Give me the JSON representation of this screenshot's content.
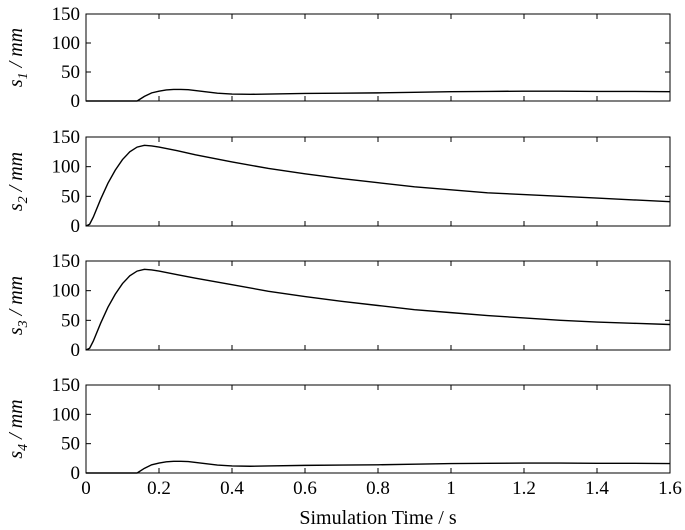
{
  "chart_data": [
    {
      "type": "line",
      "ylabel_main": "s",
      "ylabel_sub": "1",
      "ylabel_unit": " / mm",
      "xlim": [
        0,
        1.6
      ],
      "ylim": [
        0,
        150
      ],
      "series": [
        {
          "x": [
            0,
            0.14,
            0.16,
            0.18,
            0.2,
            0.22,
            0.24,
            0.26,
            0.28,
            0.3,
            0.32,
            0.34,
            0.36,
            0.4,
            0.45,
            0.5,
            0.6,
            0.7,
            0.8,
            0.9,
            1.0,
            1.1,
            1.2,
            1.3,
            1.4,
            1.5,
            1.6
          ],
          "y": [
            0,
            0,
            8,
            14,
            17,
            19,
            20,
            20,
            19.5,
            18,
            16.5,
            15,
            13.5,
            12,
            11.5,
            12,
            13,
            13.5,
            14,
            15,
            16,
            16.5,
            17,
            17,
            16.5,
            16.5,
            16
          ]
        }
      ]
    },
    {
      "type": "line",
      "ylabel_main": "s",
      "ylabel_sub": "2",
      "ylabel_unit": " / mm",
      "xlim": [
        0,
        1.6
      ],
      "ylim": [
        0,
        150
      ],
      "series": [
        {
          "x": [
            0,
            0.01,
            0.02,
            0.04,
            0.06,
            0.08,
            0.1,
            0.12,
            0.14,
            0.16,
            0.18,
            0.2,
            0.25,
            0.3,
            0.4,
            0.5,
            0.6,
            0.7,
            0.8,
            0.9,
            1.0,
            1.1,
            1.2,
            1.3,
            1.4,
            1.5,
            1.6
          ],
          "y": [
            0,
            3,
            15,
            45,
            72,
            94,
            112,
            125,
            133,
            136,
            135,
            133,
            127,
            120,
            108,
            97,
            88,
            80,
            73,
            66,
            61,
            56,
            53,
            50,
            47,
            44,
            41
          ]
        }
      ]
    },
    {
      "type": "line",
      "ylabel_main": "s",
      "ylabel_sub": "3",
      "ylabel_unit": " / mm",
      "xlim": [
        0,
        1.6
      ],
      "ylim": [
        0,
        150
      ],
      "series": [
        {
          "x": [
            0,
            0.01,
            0.02,
            0.04,
            0.06,
            0.08,
            0.1,
            0.12,
            0.14,
            0.16,
            0.18,
            0.2,
            0.25,
            0.3,
            0.4,
            0.5,
            0.6,
            0.7,
            0.8,
            0.9,
            1.0,
            1.1,
            1.2,
            1.3,
            1.4,
            1.5,
            1.6
          ],
          "y": [
            0,
            3,
            15,
            45,
            72,
            94,
            112,
            125,
            133,
            136,
            135,
            133,
            127,
            121,
            110,
            99,
            90,
            82,
            75,
            68,
            63,
            58,
            54,
            50,
            47,
            45,
            43
          ]
        }
      ]
    },
    {
      "type": "line",
      "ylabel_main": "s",
      "ylabel_sub": "4",
      "ylabel_unit": " / mm",
      "xlim": [
        0,
        1.6
      ],
      "ylim": [
        0,
        150
      ],
      "xlabel": "Simulation Time / s",
      "series": [
        {
          "x": [
            0,
            0.14,
            0.16,
            0.18,
            0.2,
            0.22,
            0.24,
            0.26,
            0.28,
            0.3,
            0.32,
            0.34,
            0.36,
            0.4,
            0.45,
            0.5,
            0.6,
            0.7,
            0.8,
            0.9,
            1.0,
            1.1,
            1.2,
            1.3,
            1.4,
            1.5,
            1.6
          ],
          "y": [
            0,
            0,
            8,
            14,
            17,
            19,
            20,
            20,
            19.5,
            18,
            16.5,
            15,
            13.5,
            12,
            11.5,
            12,
            13,
            13.5,
            14,
            15,
            16,
            16.5,
            17,
            17,
            16.5,
            16.5,
            16
          ]
        }
      ]
    }
  ],
  "axes": {
    "y_ticks": [
      "0",
      "50",
      "100",
      "150"
    ],
    "x_ticks": [
      "0",
      "0.2",
      "0.4",
      "0.6",
      "0.8",
      "1",
      "1.2",
      "1.4",
      "1.6"
    ]
  }
}
